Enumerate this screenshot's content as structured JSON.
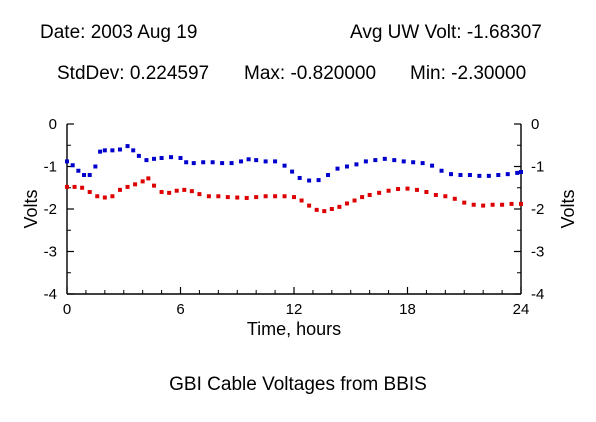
{
  "header": {
    "date": "Date: 2003 Aug 19",
    "avg": "Avg UW Volt: -1.68307",
    "stddev": "StdDev: 0.224597",
    "max": "Max: -0.820000",
    "min": "Min: -2.30000"
  },
  "caption": "GBI Cable Voltages from BBIS",
  "colors": {
    "blue_series": "#0000cc",
    "red_series": "#dd0000",
    "axis": "#000000"
  },
  "chart_data": {
    "type": "scatter",
    "title": "GBI Cable Voltages from BBIS",
    "xlabel": "Time, hours",
    "ylabel": "Volts",
    "xlim": [
      0,
      24
    ],
    "ylim": [
      -4,
      0
    ],
    "xticks": [
      0,
      6,
      12,
      18,
      24
    ],
    "yticks": [
      0,
      -1,
      -2,
      -3,
      -4
    ],
    "x_tick_labels": [
      "0",
      "6",
      "12",
      "18",
      "24"
    ],
    "y_tick_labels": [
      "0",
      "-1",
      "-2",
      "-3",
      "-4"
    ],
    "grid": false,
    "series": [
      {
        "color": "#0000cc",
        "points": [
          [
            0.0,
            -0.88
          ],
          [
            0.3,
            -0.97
          ],
          [
            0.6,
            -1.1
          ],
          [
            0.9,
            -1.2
          ],
          [
            1.2,
            -1.2
          ],
          [
            1.5,
            -1.0
          ],
          [
            1.75,
            -0.65
          ],
          [
            2.0,
            -0.62
          ],
          [
            2.4,
            -0.62
          ],
          [
            2.8,
            -0.6
          ],
          [
            3.2,
            -0.52
          ],
          [
            3.5,
            -0.62
          ],
          [
            3.8,
            -0.75
          ],
          [
            4.2,
            -0.85
          ],
          [
            4.6,
            -0.82
          ],
          [
            5.0,
            -0.8
          ],
          [
            5.5,
            -0.78
          ],
          [
            6.0,
            -0.8
          ],
          [
            6.3,
            -0.9
          ],
          [
            6.7,
            -0.92
          ],
          [
            7.2,
            -0.9
          ],
          [
            7.7,
            -0.9
          ],
          [
            8.2,
            -0.92
          ],
          [
            8.7,
            -0.92
          ],
          [
            9.2,
            -0.88
          ],
          [
            9.6,
            -0.83
          ],
          [
            10.0,
            -0.85
          ],
          [
            10.5,
            -0.88
          ],
          [
            11.0,
            -0.88
          ],
          [
            11.5,
            -0.98
          ],
          [
            11.9,
            -1.12
          ],
          [
            12.3,
            -1.27
          ],
          [
            12.8,
            -1.33
          ],
          [
            13.3,
            -1.32
          ],
          [
            13.8,
            -1.2
          ],
          [
            14.3,
            -1.05
          ],
          [
            14.8,
            -1.0
          ],
          [
            15.3,
            -0.95
          ],
          [
            15.8,
            -0.88
          ],
          [
            16.3,
            -0.85
          ],
          [
            16.8,
            -0.82
          ],
          [
            17.3,
            -0.85
          ],
          [
            17.8,
            -0.88
          ],
          [
            18.3,
            -0.9
          ],
          [
            18.8,
            -0.92
          ],
          [
            19.3,
            -0.98
          ],
          [
            19.8,
            -1.1
          ],
          [
            20.3,
            -1.18
          ],
          [
            20.8,
            -1.2
          ],
          [
            21.3,
            -1.2
          ],
          [
            21.8,
            -1.22
          ],
          [
            22.3,
            -1.22
          ],
          [
            22.8,
            -1.2
          ],
          [
            23.3,
            -1.18
          ],
          [
            23.8,
            -1.15
          ],
          [
            24.0,
            -1.13
          ]
        ]
      },
      {
        "color": "#dd0000",
        "points": [
          [
            0.0,
            -1.48
          ],
          [
            0.4,
            -1.48
          ],
          [
            0.8,
            -1.5
          ],
          [
            1.2,
            -1.6
          ],
          [
            1.6,
            -1.7
          ],
          [
            2.0,
            -1.73
          ],
          [
            2.4,
            -1.7
          ],
          [
            2.8,
            -1.55
          ],
          [
            3.2,
            -1.48
          ],
          [
            3.6,
            -1.42
          ],
          [
            4.0,
            -1.35
          ],
          [
            4.3,
            -1.28
          ],
          [
            4.6,
            -1.45
          ],
          [
            5.0,
            -1.6
          ],
          [
            5.4,
            -1.62
          ],
          [
            5.8,
            -1.57
          ],
          [
            6.2,
            -1.55
          ],
          [
            6.6,
            -1.58
          ],
          [
            7.0,
            -1.65
          ],
          [
            7.5,
            -1.7
          ],
          [
            8.0,
            -1.7
          ],
          [
            8.5,
            -1.72
          ],
          [
            9.0,
            -1.73
          ],
          [
            9.5,
            -1.74
          ],
          [
            10.0,
            -1.72
          ],
          [
            10.5,
            -1.7
          ],
          [
            11.0,
            -1.7
          ],
          [
            11.5,
            -1.7
          ],
          [
            12.0,
            -1.72
          ],
          [
            12.4,
            -1.8
          ],
          [
            12.8,
            -1.92
          ],
          [
            13.2,
            -2.02
          ],
          [
            13.6,
            -2.05
          ],
          [
            14.0,
            -2.0
          ],
          [
            14.4,
            -1.95
          ],
          [
            14.8,
            -1.87
          ],
          [
            15.2,
            -1.8
          ],
          [
            15.6,
            -1.72
          ],
          [
            16.0,
            -1.67
          ],
          [
            16.5,
            -1.62
          ],
          [
            17.0,
            -1.57
          ],
          [
            17.5,
            -1.53
          ],
          [
            18.0,
            -1.52
          ],
          [
            18.5,
            -1.55
          ],
          [
            19.0,
            -1.6
          ],
          [
            19.5,
            -1.67
          ],
          [
            20.0,
            -1.7
          ],
          [
            20.5,
            -1.76
          ],
          [
            21.0,
            -1.85
          ],
          [
            21.5,
            -1.9
          ],
          [
            22.0,
            -1.92
          ],
          [
            22.5,
            -1.9
          ],
          [
            23.0,
            -1.9
          ],
          [
            23.5,
            -1.88
          ],
          [
            24.0,
            -1.88
          ]
        ]
      }
    ]
  }
}
